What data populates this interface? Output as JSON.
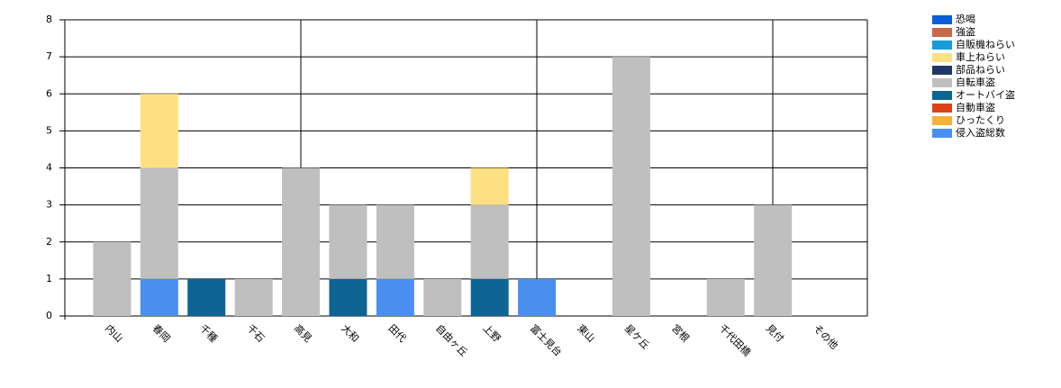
{
  "chart_data": {
    "type": "stacked_bar",
    "categories": [
      "内山",
      "春岡",
      "千種",
      "千石",
      "高見",
      "大和",
      "田代",
      "自由ヶ丘",
      "上野",
      "富士見台",
      "東山",
      "星ケ丘",
      "宮根",
      "千代田橋",
      "見付",
      "その他"
    ],
    "series": [
      {
        "name": "恐喝",
        "color": "#0a5fd6",
        "values": [
          0,
          0,
          0,
          0,
          0,
          0,
          0,
          0,
          0,
          0,
          0,
          0,
          0,
          0,
          0,
          0
        ]
      },
      {
        "name": "強盗",
        "color": "#c8694a",
        "values": [
          0,
          0,
          0,
          0,
          0,
          0,
          0,
          0,
          0,
          0,
          0,
          0,
          0,
          0,
          0,
          0
        ]
      },
      {
        "name": "自販機ねらい",
        "color": "#1a9ad6",
        "values": [
          0,
          0,
          0,
          0,
          0,
          0,
          0,
          0,
          0,
          0,
          0,
          0,
          0,
          0,
          0,
          0
        ]
      },
      {
        "name": "車上ねらい",
        "color": "#fde082",
        "values": [
          0,
          2,
          0,
          0,
          0,
          0,
          0,
          0,
          1,
          0,
          0,
          0,
          0,
          0,
          0,
          0
        ]
      },
      {
        "name": "部品ねらい",
        "color": "#1f3864",
        "values": [
          0,
          0,
          0,
          0,
          0,
          0,
          0,
          0,
          0,
          0,
          0,
          0,
          0,
          0,
          0,
          0
        ]
      },
      {
        "name": "自転車盗",
        "color": "#bfbfbf",
        "values": [
          2,
          3,
          0,
          1,
          4,
          2,
          2,
          1,
          2,
          0,
          0,
          7,
          0,
          1,
          3,
          0
        ]
      },
      {
        "name": "オートバイ盗",
        "color": "#0e6593",
        "values": [
          0,
          0,
          1,
          0,
          0,
          1,
          0,
          0,
          1,
          0,
          0,
          0,
          0,
          0,
          0,
          0
        ]
      },
      {
        "name": "自動車盗",
        "color": "#d9441a",
        "values": [
          0,
          0,
          0,
          0,
          0,
          0,
          0,
          0,
          0,
          0,
          0,
          0,
          0,
          0,
          0,
          0
        ]
      },
      {
        "name": "ひったくり",
        "color": "#f6b03a",
        "values": [
          0,
          0,
          0,
          0,
          0,
          0,
          0,
          0,
          0,
          0,
          0,
          0,
          0,
          0,
          0,
          0
        ]
      },
      {
        "name": "侵入盗総数",
        "color": "#4a8fef",
        "values": [
          0,
          1,
          0,
          0,
          0,
          0,
          1,
          0,
          0,
          1,
          0,
          0,
          0,
          0,
          0,
          0
        ]
      }
    ],
    "ylim": [
      0,
      8
    ],
    "yticks": [
      0,
      1,
      2,
      3,
      4,
      5,
      6,
      7,
      8
    ],
    "grid": true,
    "legend": "top-right"
  }
}
